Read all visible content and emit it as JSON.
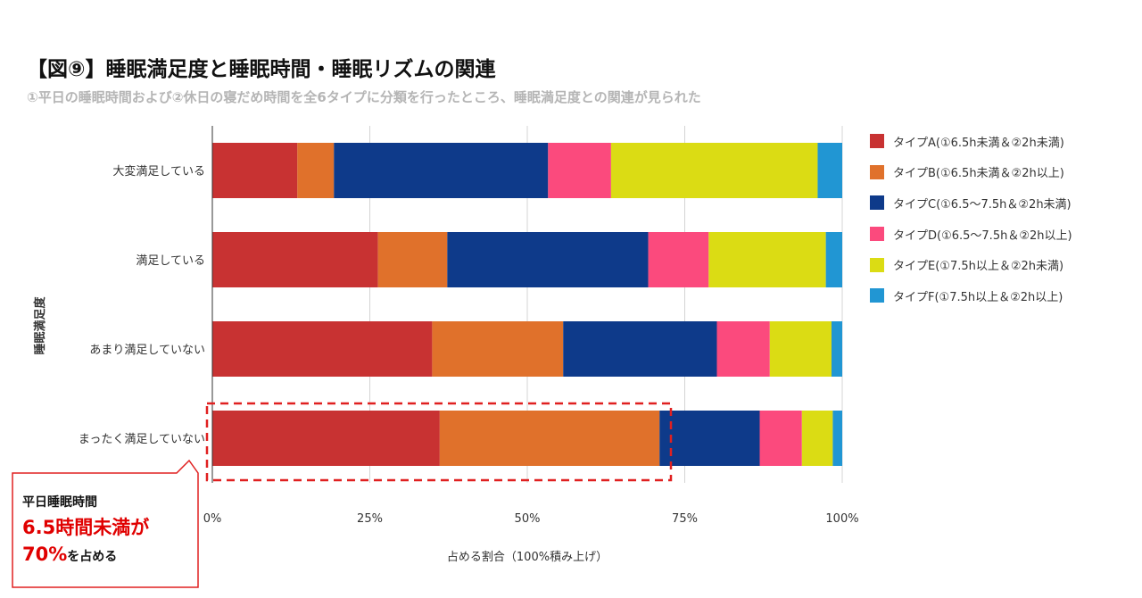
{
  "title": "【図⑨】睡眠満足度と睡眠時間・睡眠リズムの関連",
  "subtitle": "①平日の睡眠時間および②休日の寝だめ時間を全6タイプに分類を行ったところ、睡眠満足度との関連が見られた",
  "chart_data": {
    "type": "bar",
    "orientation": "horizontal",
    "stacked": "percent",
    "categories": [
      "大変満足している",
      "満足している",
      "あまり満足していない",
      "まったく満足していない"
    ],
    "series": [
      {
        "name": "タイプA(①6.5h未満＆②2h未満)",
        "color": "#c83232",
        "values": [
          13.5,
          26.3,
          34.9,
          36.1
        ]
      },
      {
        "name": "タイプB(①6.5h未満＆②2h以上)",
        "color": "#e0712b",
        "values": [
          5.8,
          11.0,
          20.8,
          34.9
        ]
      },
      {
        "name": "タイプC(①6.5～7.5h＆②2h未満)",
        "color": "#0e3a8a",
        "values": [
          34.0,
          31.9,
          24.4,
          15.9
        ]
      },
      {
        "name": "タイプD(①6.5～7.5h＆②2h以上)",
        "color": "#fb4a7d",
        "values": [
          10.0,
          9.6,
          8.4,
          6.7
        ]
      },
      {
        "name": "タイプE(①7.5h以上＆②2h未満)",
        "color": "#dbdc14",
        "values": [
          32.8,
          18.6,
          9.8,
          4.9
        ]
      },
      {
        "name": "タイプF(①7.5h以上＆②2h以上)",
        "color": "#2196d3",
        "values": [
          3.9,
          2.6,
          1.7,
          1.5
        ]
      }
    ],
    "xlabel": "占める割合（100%積み上げ）",
    "ylabel": "睡眠満足度",
    "xticks": [
      "0%",
      "25%",
      "50%",
      "75%",
      "100%"
    ],
    "xlim": [
      0,
      100
    ],
    "grid": true,
    "legend": "right"
  },
  "callout": {
    "line1": "平日睡眠時間",
    "line2": "6.5時間未満が",
    "line3_big": "70%",
    "line3_small": "を占める"
  }
}
